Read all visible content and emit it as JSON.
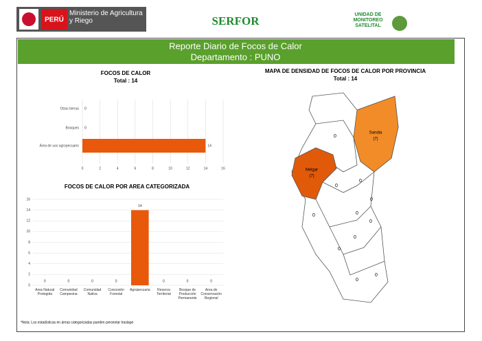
{
  "header": {
    "country": "PERÚ",
    "ministry": "Ministerio de Agricultura y Riego",
    "agency": "SERFOR",
    "unit": "UNIDAD DE MONITOREO SATELITAL"
  },
  "banner": {
    "title": "Reporte Diario de Focos de Calor",
    "subtitle": "Departamento : PUNO"
  },
  "chart_data": [
    {
      "type": "hbar",
      "title": "FOCOS DE CALOR",
      "subtitle": "Total : 14",
      "categories": [
        "Otras tierras",
        "Bosques",
        "Área de uso agropecuario"
      ],
      "values": [
        0,
        0,
        14
      ],
      "color": "#e8590c",
      "xlim": [
        0,
        16
      ],
      "xticks": [
        0,
        2,
        4,
        6,
        8,
        10,
        12,
        14,
        16
      ],
      "grid": true
    },
    {
      "type": "bar",
      "title": "FOCOS DE CALOR POR AREA CATEGORIZADA",
      "categories": [
        "Área Natural Protegida",
        "Comunidad Campesina",
        "Comunidad Nativa",
        "Concesión Forestal",
        "Agropecuaria",
        "Reserva Territorial",
        "Bosque de Producción Permanente",
        "Área de Conservación Regional"
      ],
      "values": [
        0,
        0,
        0,
        0,
        14,
        0,
        0,
        0
      ],
      "color": "#e8590c",
      "ylim": [
        0,
        16
      ],
      "yticks": [
        0,
        2,
        4,
        6,
        8,
        10,
        12,
        14,
        16
      ],
      "grid": true
    }
  ],
  "map": {
    "title": "MAPA DE DENSIDAD DE FOCOS DE CALOR POR PROVINCIA",
    "subtitle": "Total : 14",
    "regions": [
      {
        "name": "Sandia",
        "value": 7,
        "value_label": "(7)"
      },
      {
        "name": "Melgar",
        "value": 7,
        "value_label": "(7)"
      }
    ],
    "zero_labels": [
      0,
      0,
      0,
      0,
      0,
      0,
      0,
      0,
      0,
      0,
      0
    ]
  },
  "note": "*Nota: Los estadísticas en áreas categorizadas pueden presentar traslape"
}
